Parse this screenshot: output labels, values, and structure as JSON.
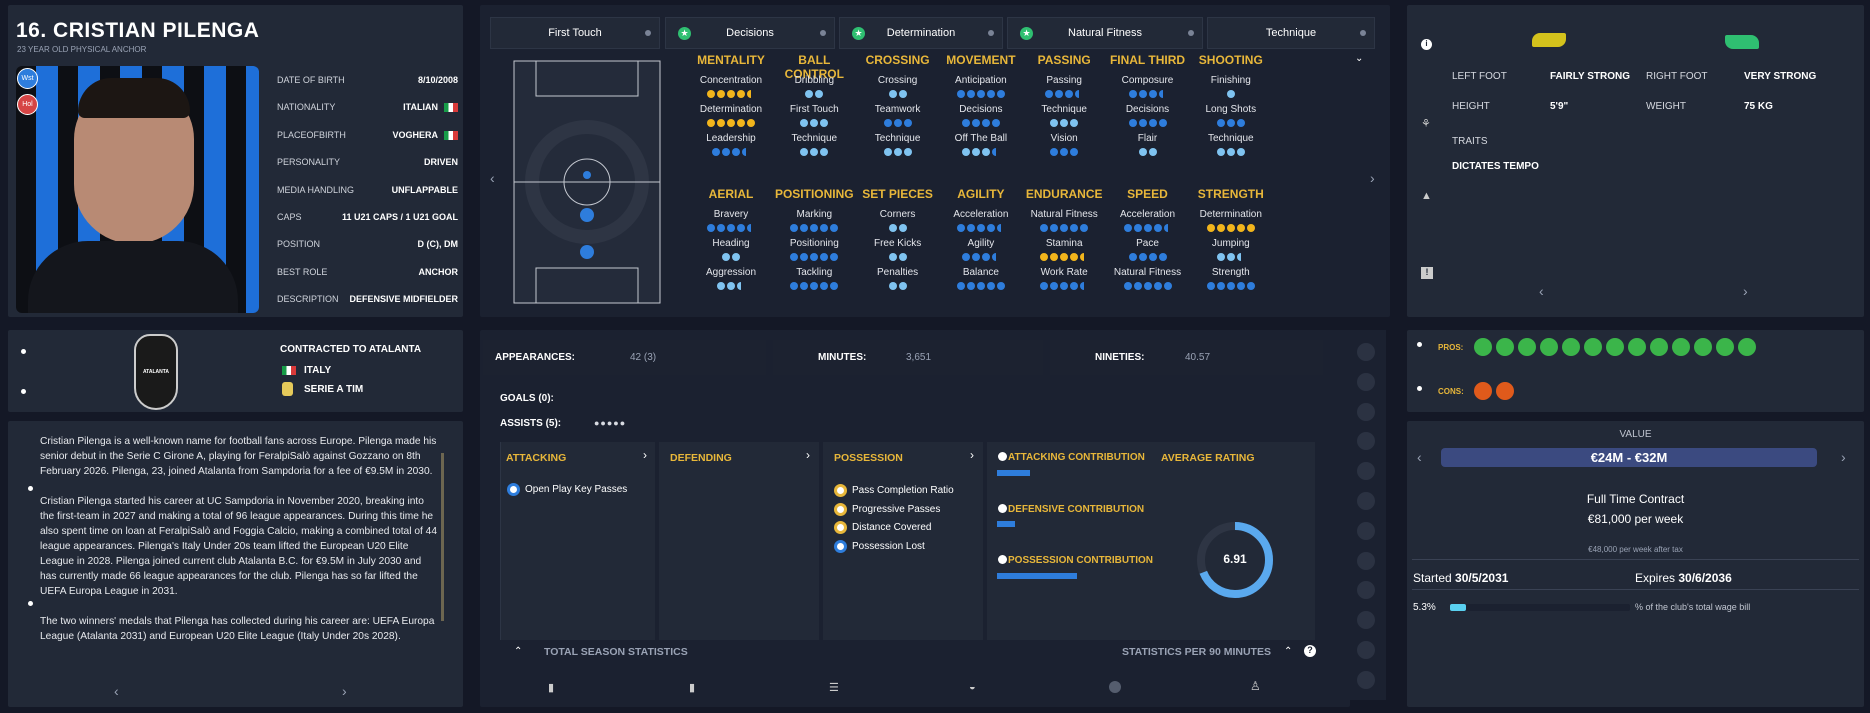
{
  "player": {
    "name": "16. CRISTIAN PILENGA",
    "subtitle": "23 YEAR OLD PHYSICAL ANCHOR",
    "badge1": "Wst",
    "badge2": "Hol"
  },
  "info": [
    {
      "label": "DATE OF BIRTH",
      "value": "8/10/2008"
    },
    {
      "label": "NATIONALITY",
      "value": "ITALIAN"
    },
    {
      "label": "PLACEOFBIRTH",
      "value": "VOGHERA"
    },
    {
      "label": "PERSONALITY",
      "value": "DRIVEN"
    },
    {
      "label": "MEDIA HANDLING",
      "value": "UNFLAPPABLE"
    },
    {
      "label": "CAPS",
      "value": "11 U21 CAPS / 1 U21 GOAL"
    },
    {
      "label": "POSITION",
      "value": "D (C), DM"
    },
    {
      "label": "BEST ROLE",
      "value": "ANCHOR"
    },
    {
      "label": "DESCRIPTION",
      "value": "DEFENSIVE MIDFIELDER"
    }
  ],
  "tabs": [
    {
      "label": "First Touch",
      "star": false
    },
    {
      "label": "Decisions",
      "star": true
    },
    {
      "label": "Determination",
      "star": true
    },
    {
      "label": "Natural Fitness",
      "star": true
    },
    {
      "label": "Technique",
      "star": false
    }
  ],
  "attr_groups_top": [
    {
      "title": "MENTALITY",
      "items": [
        {
          "n": "Concentration",
          "d": "GGGGH"
        },
        {
          "n": "Determination",
          "d": "GGGGG"
        },
        {
          "n": "Leadership",
          "d": "BBBH"
        }
      ]
    },
    {
      "title": "BALL CONTROL",
      "items": [
        {
          "n": "Dribbling",
          "d": "LL"
        },
        {
          "n": "First Touch",
          "d": "LLL"
        },
        {
          "n": "Technique",
          "d": "LLL"
        }
      ]
    },
    {
      "title": "CROSSING",
      "items": [
        {
          "n": "Crossing",
          "d": "LL"
        },
        {
          "n": "Teamwork",
          "d": "BBB"
        },
        {
          "n": "Technique",
          "d": "LLL"
        }
      ]
    },
    {
      "title": "MOVEMENT",
      "items": [
        {
          "n": "Anticipation",
          "d": "BBBBB"
        },
        {
          "n": "Decisions",
          "d": "BBBB"
        },
        {
          "n": "Off The Ball",
          "d": "LLLH"
        }
      ]
    },
    {
      "title": "PASSING",
      "items": [
        {
          "n": "Passing",
          "d": "BBBH"
        },
        {
          "n": "Technique",
          "d": "LLL"
        },
        {
          "n": "Vision",
          "d": "BBB"
        }
      ]
    },
    {
      "title": "FINAL THIRD",
      "items": [
        {
          "n": "Composure",
          "d": "BBBH"
        },
        {
          "n": "Decisions",
          "d": "BBBB"
        },
        {
          "n": "Flair",
          "d": "LL"
        }
      ]
    },
    {
      "title": "SHOOTING",
      "items": [
        {
          "n": "Finishing",
          "d": "L"
        },
        {
          "n": "Long Shots",
          "d": "BBB"
        },
        {
          "n": "Technique",
          "d": "LLL"
        }
      ]
    }
  ],
  "attr_groups_bottom": [
    {
      "title": "AERIAL",
      "items": [
        {
          "n": "Bravery",
          "d": "BBBBH"
        },
        {
          "n": "Heading",
          "d": "LL"
        },
        {
          "n": "Aggression",
          "d": "LLh"
        }
      ]
    },
    {
      "title": "POSITIONING",
      "items": [
        {
          "n": "Marking",
          "d": "BBBBB"
        },
        {
          "n": "Positioning",
          "d": "BBBBB"
        },
        {
          "n": "Tackling",
          "d": "BBBBB"
        }
      ]
    },
    {
      "title": "SET PIECES",
      "items": [
        {
          "n": "Corners",
          "d": "LL"
        },
        {
          "n": "Free Kicks",
          "d": "LL"
        },
        {
          "n": "Penalties",
          "d": "LL"
        }
      ]
    },
    {
      "title": "AGILITY",
      "items": [
        {
          "n": "Acceleration",
          "d": "BBBBH"
        },
        {
          "n": "Agility",
          "d": "BBBH"
        },
        {
          "n": "Balance",
          "d": "BBBBB"
        }
      ]
    },
    {
      "title": "ENDURANCE",
      "items": [
        {
          "n": "Natural Fitness",
          "d": "BBBBB"
        },
        {
          "n": "Stamina",
          "d": "GGGGH"
        },
        {
          "n": "Work Rate",
          "d": "BBBBH"
        }
      ]
    },
    {
      "title": "SPEED",
      "items": [
        {
          "n": "Acceleration",
          "d": "BBBBH"
        },
        {
          "n": "Pace",
          "d": "BBBB"
        },
        {
          "n": "Natural Fitness",
          "d": "BBBBB"
        }
      ]
    },
    {
      "title": "STRENGTH",
      "items": [
        {
          "n": "Determination",
          "d": "GGGGG"
        },
        {
          "n": "Jumping",
          "d": "LLh"
        },
        {
          "n": "Strength",
          "d": "BBBBB"
        }
      ]
    }
  ],
  "physical": {
    "left_foot_label": "LEFT FOOT",
    "left_foot": "FAIRLY STRONG",
    "right_foot_label": "RIGHT FOOT",
    "right_foot": "VERY STRONG",
    "height_label": "HEIGHT",
    "height": "5'9\"",
    "weight_label": "WEIGHT",
    "weight": "75 KG",
    "traits_label": "TRAITS",
    "trait": "DICTATES TEMPO"
  },
  "club": {
    "contract": "CONTRACTED TO ATALANTA",
    "country": "ITALY",
    "league": "SERIE A TIM",
    "crest_text": "ATALANTA"
  },
  "bio": [
    "Cristian Pilenga is a well-known name for football fans across Europe. Pilenga made his senior debut in the Serie C Girone A, playing for FeralpiSalò against Gozzano on 8th February 2026. Pilenga, 23, joined Atalanta from Sampdoria for a fee of €9.5M in 2030.",
    "Cristian Pilenga started his career at UC Sampdoria in November 2020, breaking into the first-team in 2027 and making a total of 96 league appearances. During this time he also spent time on loan at FeralpiSalò and Foggia Calcio, making a combined total of 44 league appearances. Pilenga's Italy Under 20s team lifted the European U20 Elite League in 2028. Pilenga joined current club Atalanta B.C. for €9.5M in July 2030 and has currently made 66 league appearances for the club. Pilenga has so far lifted the UEFA Europa League in 2031.",
    "The two winners' medals that Pilenga has collected during his career are: UEFA Europa League (Atalanta 2031) and European U20 Elite League (Italy Under 20s 2028)."
  ],
  "stats": {
    "apps_label": "APPEARANCES:",
    "apps": "42 (3)",
    "mins_label": "MINUTES:",
    "mins": "3,651",
    "nin_label": "NINETIES:",
    "nin": "40.57",
    "goals": "GOALS (0):",
    "assists": "ASSISTS (5):"
  },
  "sections": {
    "attacking": "ATTACKING",
    "defending": "DEFENDING",
    "possession": "POSSESSION",
    "att_item": "Open Play Key Passes",
    "pos_items": [
      "Pass Completion Ratio",
      "Progressive Passes",
      "Distance Covered",
      "Possession Lost"
    ],
    "att_contrib": "ATTACKING CONTRIBUTION",
    "def_contrib": "DEFENSIVE CONTRIBUTION",
    "pos_contrib": "POSSESSION CONTRIBUTION",
    "avg_rating_label": "AVERAGE RATING",
    "avg_rating": "6.91",
    "total_stats": "TOTAL SEASON STATISTICS",
    "per90": "STATISTICS PER 90 MINUTES"
  },
  "contributions": {
    "attacking": 0.33,
    "defensive": 0.18,
    "possession": 0.8,
    "rating_fraction": 0.69
  },
  "pros_label": "PROS:",
  "cons_label": "CONS:",
  "value": {
    "label": "VALUE",
    "range": "€24M - €32M",
    "contract_type": "Full Time Contract",
    "wage": "€81,000 per week",
    "after_tax": "€48,000 per week after tax",
    "started_label": "Started",
    "started": "30/5/2031",
    "expires_label": "Expires",
    "expires": "30/6/2036",
    "wage_pct": "5.3%",
    "wage_bill": "% of the club's total wage bill",
    "wage_fraction": 0.053
  },
  "colors": {
    "accent": "#e8b73a",
    "blue": "#2e7ddc",
    "panel": "#222937",
    "pro": "#3bb54a",
    "con": "#e05a1b"
  }
}
